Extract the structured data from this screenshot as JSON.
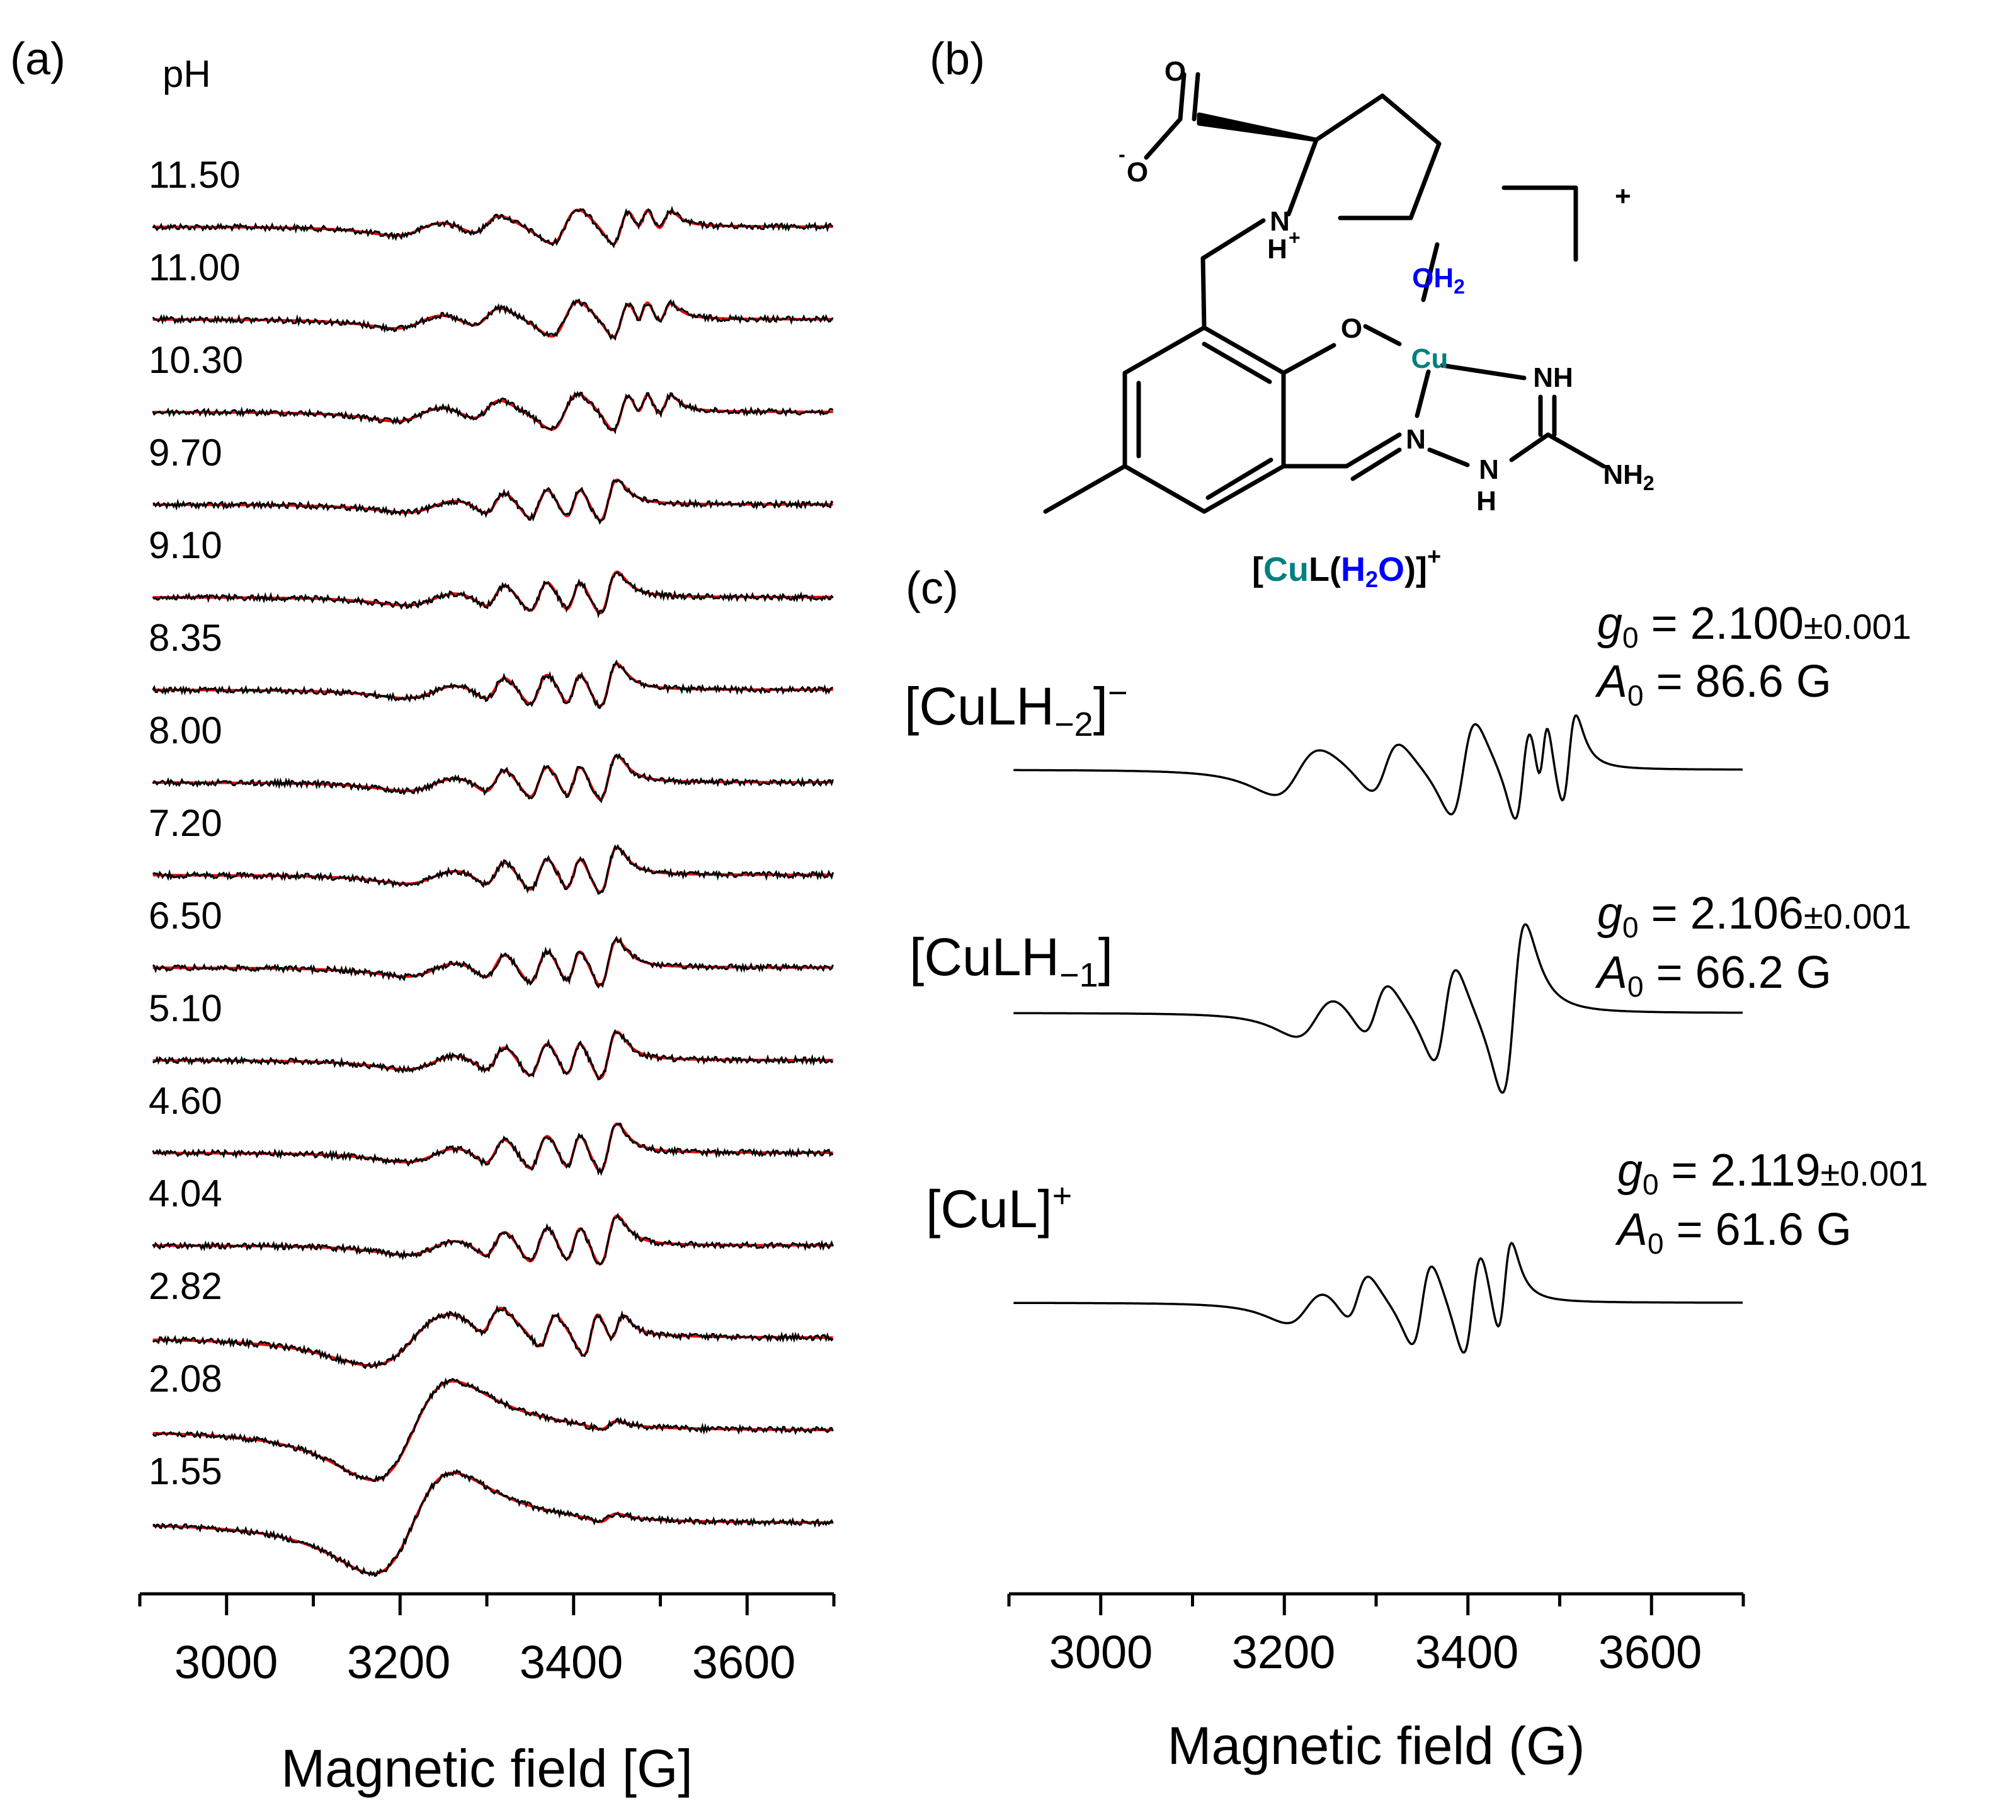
{
  "panels": {
    "a": {
      "label": "(a)",
      "ph_header": "pH",
      "xlabel": "Magnetic field [G]",
      "x_ticks": [
        "3000",
        "3200",
        "3400",
        "3600"
      ]
    },
    "b": {
      "label": "(b)",
      "caption_parts": [
        "[",
        "Cu",
        "L(",
        "H",
        "2",
        "O",
        ")]",
        "+"
      ],
      "structure_labels": {
        "o_carbonyl": "O",
        "o_carboxylate": "O",
        "minus": "-",
        "n_pyrrolidine": "N",
        "h_plus": "H",
        "plus_sup": "+",
        "o_phenol": "O",
        "cu": "Cu",
        "oh2": "OH",
        "oh2_sub": "2",
        "nh_imine": "NH",
        "n_azo": "N",
        "n_hydrazine": "N",
        "h_hydrazine": "H",
        "nh2": "NH",
        "nh2_sub": "2",
        "charge": "+"
      },
      "colors": {
        "cu": "#008080",
        "water": "#0000ff"
      }
    },
    "c": {
      "label": "(c)",
      "xlabel": "Magnetic field (G)",
      "x_ticks": [
        "3000",
        "3200",
        "3400",
        "3600"
      ],
      "species": [
        {
          "name": "[CuLH",
          "sub": "−2",
          "close": "]",
          "sup": "−",
          "g0_label": "g",
          "g0_sub": "0",
          "g0_value": " = 2.100",
          "g0_err": "±0.001",
          "a0_label": "A",
          "a0_sub": "0",
          "a0_value": " = 86.6 G"
        },
        {
          "name": "[CuLH",
          "sub": "−1",
          "close": "]",
          "sup": "",
          "g0_label": "g",
          "g0_sub": "0",
          "g0_value": " = 2.106",
          "g0_err": "±0.001",
          "a0_label": "A",
          "a0_sub": "0",
          "a0_value": " = 66.2 G"
        },
        {
          "name": "[CuL]",
          "sub": "",
          "close": "",
          "sup": "+",
          "g0_label": "g",
          "g0_sub": "0",
          "g0_value": " = 2.119",
          "g0_err": "±0.001",
          "a0_label": "A",
          "a0_sub": "0",
          "a0_value": " = 61.6 G"
        }
      ]
    }
  },
  "chart_data": [
    {
      "type": "line",
      "panel": "a",
      "xlabel": "Magnetic field [G]",
      "xlim": [
        2900,
        3700
      ],
      "x_ticks": [
        3000,
        3200,
        3400,
        3600
      ],
      "colors": {
        "experimental": "#000000",
        "simulated": "#ff0000"
      },
      "ph_values": [
        "11.50",
        "11.00",
        "10.30",
        "9.70",
        "9.10",
        "8.35",
        "8.00",
        "7.20",
        "6.50",
        "5.10",
        "4.60",
        "4.04",
        "2.82",
        "2.08",
        "1.55"
      ],
      "approx_features_by_group": {
        "high_pH_11.50_11.00_10.30": {
          "min_G": [
            3240,
            3320,
            3415,
            3480,
            3515
          ],
          "max_G": [
            3200,
            3370,
            3460,
            3470
          ]
        },
        "mid_pH_9.70_to_4.04": {
          "min_G": [
            3300,
            3365,
            3400,
            3450
          ],
          "max_G": [
            3210,
            3340,
            3390,
            3420
          ]
        },
        "low_pH_2.82_2.08_1.55": {
          "max_G": [
            3140
          ],
          "min_G": [
            3290
          ]
        }
      }
    },
    {
      "type": "line",
      "panel": "c",
      "xlabel": "Magnetic field (G)",
      "xlim": [
        2900,
        3700
      ],
      "x_ticks": [
        3000,
        3200,
        3400,
        3600
      ],
      "series": [
        {
          "name": "[CuLH−2]−",
          "g0": 2.1,
          "g0_error": 0.001,
          "A0_G": 86.6,
          "approx_peaks_G": [
            3190,
            3285,
            3370,
            3465
          ],
          "approx_troughs_G": [
            3240,
            3335,
            3420,
            3520
          ]
        },
        {
          "name": "[CuLH−1]",
          "g0": 2.106,
          "g0_error": 0.001,
          "A0_G": 66.2,
          "approx_peaks_G": [
            3210,
            3280,
            3355,
            3430
          ],
          "approx_troughs_G": [
            3260,
            3325,
            3395,
            3470
          ]
        },
        {
          "name": "[CuL]+",
          "g0": 2.119,
          "g0_error": 0.001,
          "A0_G": 61.6,
          "approx_peaks_G": [
            3200,
            3250,
            3330,
            3400
          ],
          "approx_troughs_G": [
            3300,
            3370,
            3445
          ]
        }
      ]
    }
  ]
}
